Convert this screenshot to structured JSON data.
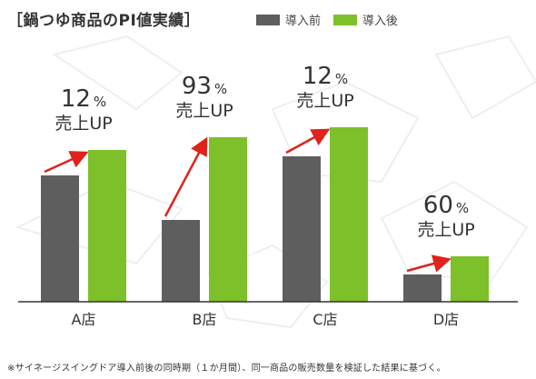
{
  "title": "［鍋つゆ商品のPI値実績］",
  "legend": {
    "before_label": "導入前",
    "after_label": "導入後"
  },
  "colors": {
    "before": "#5e5e5e",
    "after": "#7dc02a",
    "arrow": "#e0221b",
    "axis": "#333333"
  },
  "footnote": "※サイネージスイングドア導入前後の同時期（１か月間）、同一商品の販売数量を検証した結果に基づく。",
  "chart_data": {
    "type": "bar",
    "title": "［鍋つゆ商品のPI値実績］",
    "categories": [
      "A店",
      "B店",
      "C店",
      "D店"
    ],
    "series": [
      {
        "name": "導入前",
        "values": [
          139,
          90,
          160,
          30
        ]
      },
      {
        "name": "導入後",
        "values": [
          167,
          181,
          192,
          50
        ]
      }
    ],
    "annotations": [
      {
        "category": "A店",
        "percent": "12",
        "unit": "%",
        "label": "売上UP"
      },
      {
        "category": "B店",
        "percent": "93",
        "unit": "%",
        "label": "売上UP"
      },
      {
        "category": "C店",
        "percent": "12",
        "unit": "%",
        "label": "売上UP"
      },
      {
        "category": "D店",
        "percent": "60",
        "unit": "%",
        "label": "売上UP"
      }
    ],
    "ylim": [
      0,
      230
    ],
    "grid": false,
    "legend_position": "top"
  }
}
